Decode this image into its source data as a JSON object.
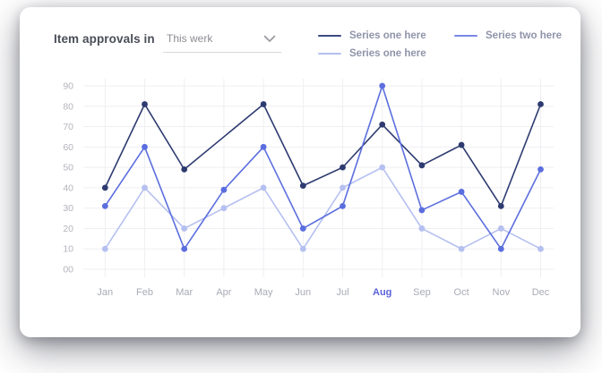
{
  "card": {
    "title": "Item approvals in",
    "dropdown": {
      "value": "This werk",
      "icon": "chevron-down"
    },
    "legend": [
      {
        "label": "Series one here",
        "color": "#3d4a80"
      },
      {
        "label": "Series one here",
        "color": "#b5c0f0"
      },
      {
        "label": "Series two here",
        "color": "#7b87e8"
      }
    ]
  },
  "chart_data": {
    "type": "line",
    "title": "Item approvals in",
    "xlabel": "",
    "ylabel": "",
    "categories": [
      "Jan",
      "Feb",
      "Mar",
      "Apr",
      "May",
      "Jun",
      "Jul",
      "Aug",
      "Sep",
      "Oct",
      "Nov",
      "Dec"
    ],
    "highlighted_category": "Aug",
    "highlight_color": "#5a63da",
    "y_tick_labels": [
      "90",
      "80",
      "70",
      "60",
      "50",
      "40",
      "30",
      "20",
      "10",
      "00"
    ],
    "ylim": [
      0,
      90
    ],
    "grid": true,
    "grid_color": "#efeef2",
    "axis_label_color": "#b3b4bc",
    "legend_position": "top-right",
    "series": [
      {
        "name": "Series one here",
        "color": "#2d3b70",
        "values": [
          40,
          81,
          49,
          65,
          81,
          41,
          50,
          71,
          51,
          61,
          31,
          81
        ],
        "hidden_markers": [
          3
        ]
      },
      {
        "name": "Series one here",
        "color": "#b5c0f0",
        "values": [
          10,
          40,
          20,
          30,
          40,
          10,
          40,
          50,
          20,
          10,
          20,
          10
        ],
        "hidden_markers": []
      },
      {
        "name": "Series two here",
        "color": "#5b6ede",
        "values": [
          31,
          60,
          10,
          39,
          60,
          20,
          31,
          90,
          29,
          38,
          10,
          49
        ],
        "hidden_markers": []
      }
    ]
  }
}
